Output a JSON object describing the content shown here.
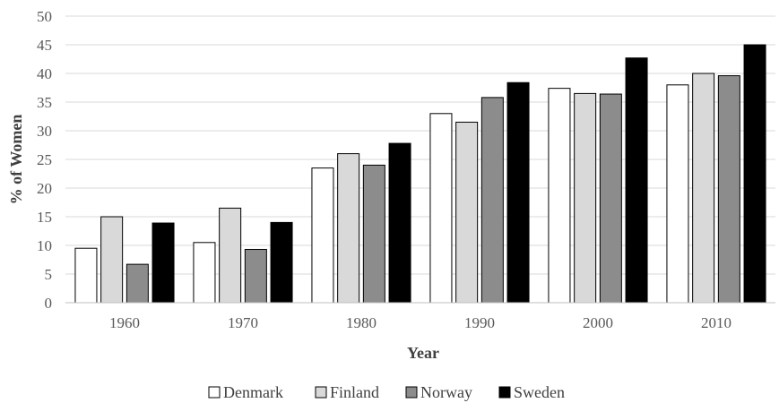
{
  "chart_data": {
    "type": "bar",
    "title": "",
    "xlabel": "Year",
    "ylabel": "% of Women",
    "categories": [
      "1960",
      "1970",
      "1980",
      "1990",
      "2000",
      "2010"
    ],
    "ylim": [
      0,
      50
    ],
    "yticks": [
      0,
      5,
      10,
      15,
      20,
      25,
      30,
      35,
      40,
      45,
      50
    ],
    "grid": true,
    "legend_position": "bottom",
    "series": [
      {
        "name": "Denmark",
        "color": "#ffffff",
        "values": [
          9.5,
          10.5,
          23.5,
          33.0,
          37.4,
          38.0
        ]
      },
      {
        "name": "Finland",
        "color": "#d9d9d9",
        "values": [
          15.0,
          16.5,
          26.0,
          31.5,
          36.5,
          40.0
        ]
      },
      {
        "name": "Norway",
        "color": "#8c8c8c",
        "values": [
          6.7,
          9.3,
          24.0,
          35.8,
          36.4,
          39.6
        ]
      },
      {
        "name": "Sweden",
        "color": "#000000",
        "values": [
          13.9,
          14.0,
          27.8,
          38.4,
          42.7,
          45.0
        ]
      }
    ]
  }
}
